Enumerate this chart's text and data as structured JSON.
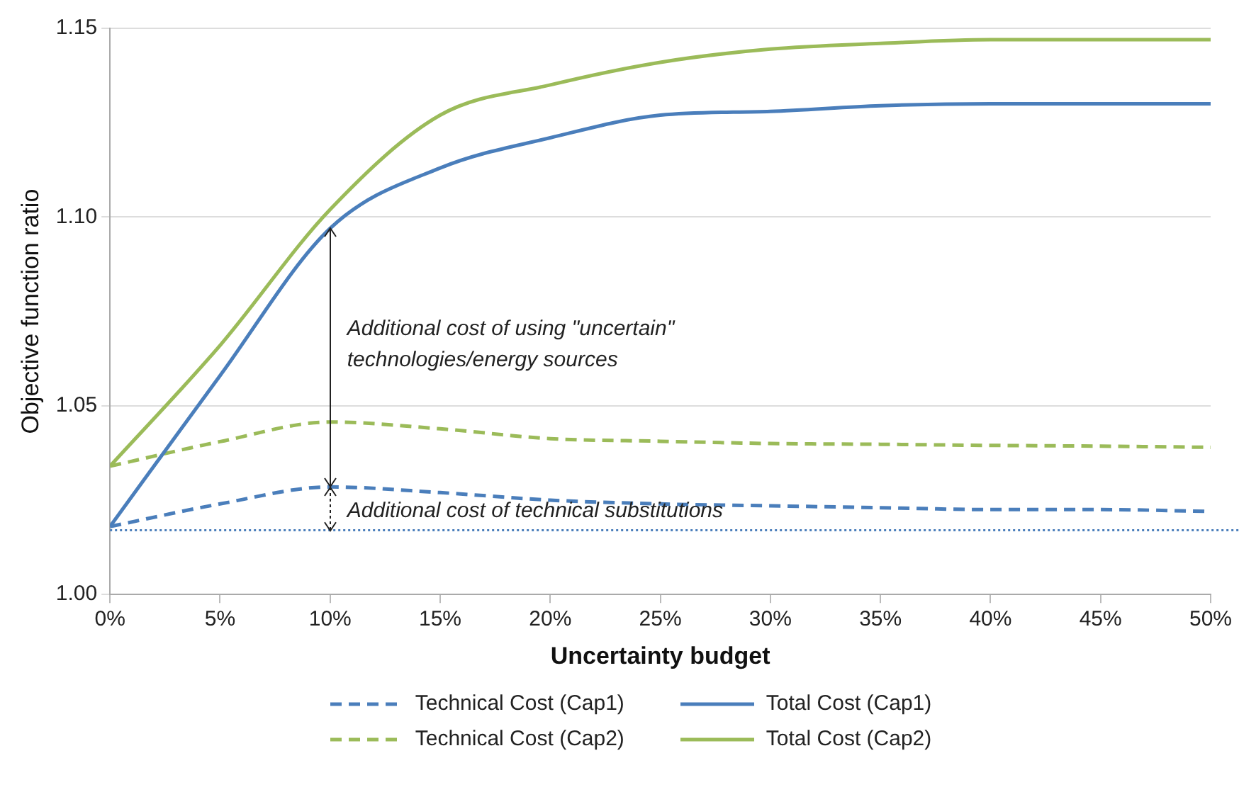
{
  "chart_data": {
    "type": "line",
    "xlabel": "Uncertainty budget",
    "ylabel": "Objective function ratio",
    "x": [
      0,
      5,
      10,
      15,
      20,
      25,
      30,
      35,
      40,
      45,
      50
    ],
    "xlim": [
      0,
      50
    ],
    "xticks": [
      {
        "value": 0,
        "label": "0%"
      },
      {
        "value": 5,
        "label": "5%"
      },
      {
        "value": 10,
        "label": "10%"
      },
      {
        "value": 15,
        "label": "15%"
      },
      {
        "value": 20,
        "label": "20%"
      },
      {
        "value": 25,
        "label": "25%"
      },
      {
        "value": 30,
        "label": "30%"
      },
      {
        "value": 35,
        "label": "35%"
      },
      {
        "value": 40,
        "label": "40%"
      },
      {
        "value": 45,
        "label": "45%"
      },
      {
        "value": 50,
        "label": "50%"
      }
    ],
    "ylim": [
      1.0,
      1.15
    ],
    "yticks": [
      {
        "value": 1.0,
        "label": "1.00"
      },
      {
        "value": 1.05,
        "label": "1.05"
      },
      {
        "value": 1.1,
        "label": "1.10"
      },
      {
        "value": 1.15,
        "label": "1.15"
      }
    ],
    "grid": "y",
    "legend": "bottom",
    "marker": "none",
    "series": [
      {
        "name": "Technical Cost (Cap1)",
        "color": "#4a7ebb",
        "line_style": "dashed",
        "values": [
          1.018,
          1.024,
          1.0285,
          1.027,
          1.025,
          1.024,
          1.0235,
          1.023,
          1.0225,
          1.0225,
          1.022
        ]
      },
      {
        "name": "Total Cost (Cap1)",
        "color": "#4a7ebb",
        "line_style": "solid",
        "values": [
          1.018,
          1.058,
          1.097,
          1.113,
          1.121,
          1.127,
          1.128,
          1.1295,
          1.13,
          1.13,
          1.13
        ]
      },
      {
        "name": "Technical Cost (Cap2)",
        "color": "#9bbb59",
        "line_style": "dashed",
        "values": [
          1.034,
          1.0405,
          1.0457,
          1.0439,
          1.0413,
          1.0406,
          1.04,
          1.0398,
          1.0395,
          1.0393,
          1.039
        ]
      },
      {
        "name": "Total Cost (Cap2)",
        "color": "#9bbb59",
        "line_style": "solid",
        "values": [
          1.034,
          1.066,
          1.102,
          1.127,
          1.135,
          1.141,
          1.1445,
          1.146,
          1.147,
          1.147,
          1.147
        ]
      }
    ],
    "ref_lines": [
      {
        "axis": "y",
        "value": 1.017,
        "color": "#4a7ebb",
        "line_style": "dotted"
      }
    ],
    "annotations": [
      "Additional cost of using \"uncertain\" technologies/energy sources",
      {
        "text": "Additional cost of technical substitutions",
        "x": 10,
        "y": 1.0285
      }
    ]
  }
}
